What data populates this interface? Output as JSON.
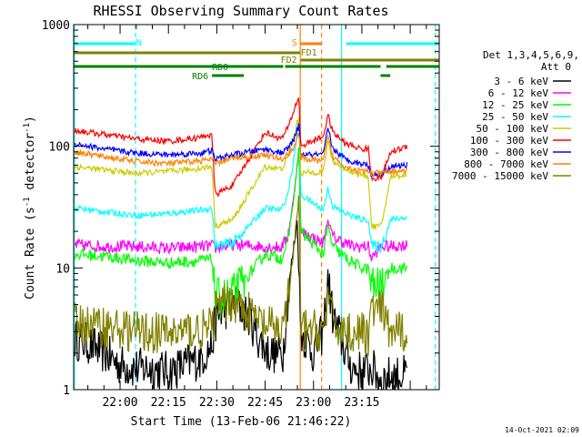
{
  "chart_data": {
    "type": "line",
    "title": "RHESSI Observing Summary Count Rates",
    "xlabel": "Start Time (13-Feb-06 21:46:22)",
    "ylabel_prefix": "Count Rate (s",
    "ylabel_exp": "-1",
    "ylabel_mid": " detector",
    "ylabel_suffix": ")",
    "yscale": "log",
    "ylim": [
      1,
      1000
    ],
    "xlim_minutes": [
      -14.4,
      99.0
    ],
    "x_ticks": [
      {
        "label": "22:00",
        "minute": 0
      },
      {
        "label": "22:15",
        "minute": 15
      },
      {
        "label": "22:30",
        "minute": 30
      },
      {
        "label": "22:45",
        "minute": 45
      },
      {
        "label": "23:00",
        "minute": 60
      },
      {
        "label": "23:15",
        "minute": 75
      }
    ],
    "y_ticks": [
      {
        "label": "1",
        "value": 1
      },
      {
        "label": "10",
        "value": 10
      },
      {
        "label": "100",
        "value": 100
      },
      {
        "label": "1000",
        "value": 1000
      }
    ],
    "detectors_label": "Det 1,3,4,5,6,9,",
    "attenuator_label": "Att 0",
    "timestamp": "14-Oct-2021 02:09",
    "series": [
      {
        "name": "3 - 6 keV",
        "color": "#000000",
        "x": [
          -14,
          -10,
          -5,
          0,
          5,
          10,
          15,
          20,
          25,
          28.5,
          29.5,
          32,
          36,
          40,
          43,
          46,
          50.5,
          51.5,
          53,
          55,
          56,
          60,
          63,
          64.5,
          66,
          70,
          72,
          75,
          78,
          81,
          84,
          89
        ],
        "values": [
          2.6,
          2.4,
          2.0,
          1.6,
          1.5,
          1.5,
          1.4,
          1.6,
          1.8,
          2.3,
          3.6,
          4.5,
          5.0,
          4.0,
          2.6,
          2.0,
          2.0,
          4.0,
          10.0,
          25.0,
          3.0,
          2.0,
          3.0,
          8.0,
          4.0,
          2.0,
          1.5,
          1.4,
          1.5,
          1.2,
          1.3,
          1.3
        ]
      },
      {
        "name": "6 - 12 keV",
        "color": "#ff00ff",
        "x": [
          -14,
          -5,
          5,
          15,
          25,
          28.5,
          29.5,
          35,
          45,
          50,
          52,
          54,
          55.5,
          56,
          63,
          64.5,
          66,
          70,
          72,
          75,
          77,
          78,
          81,
          84,
          89
        ],
        "values": [
          15.5,
          15.0,
          15.0,
          14.5,
          15.0,
          15.2,
          14.5,
          15.5,
          15.0,
          14.8,
          18.0,
          40.0,
          100.0,
          20.0,
          16.0,
          25.0,
          18.0,
          16.0,
          15.0,
          15.0,
          15.0,
          12.0,
          15.0,
          15.0,
          15.5
        ]
      },
      {
        "name": "12 - 25 keV",
        "color": "#00ff00",
        "x": [
          -14,
          -5,
          5,
          15,
          25,
          28.5,
          29.5,
          35,
          45,
          50,
          52,
          54,
          55.5,
          56,
          63,
          64.5,
          66,
          70,
          75,
          77,
          78,
          81,
          84,
          89
        ],
        "values": [
          13.0,
          12.5,
          11.5,
          11.0,
          11.5,
          11.8,
          5.5,
          6.0,
          13.0,
          12.0,
          16.0,
          40.0,
          100.0,
          20.0,
          13.0,
          22.0,
          15.0,
          12.0,
          10.0,
          9.8,
          7.0,
          7.0,
          10.0,
          10.0
        ]
      },
      {
        "name": "25 - 50 keV",
        "color": "#00ffff",
        "x": [
          -14,
          -5,
          5,
          15,
          25,
          28.5,
          29.5,
          35,
          45,
          50,
          52,
          54,
          55.5,
          56,
          63,
          64.5,
          66,
          70,
          75,
          77,
          78,
          81,
          84,
          89
        ],
        "values": [
          31.0,
          29.0,
          27.0,
          28.0,
          30.0,
          31.0,
          15.0,
          16.0,
          31.0,
          30.0,
          40.0,
          80.0,
          180.0,
          40.0,
          30.0,
          45.0,
          32.0,
          28.0,
          25.0,
          25.0,
          15.0,
          15.0,
          25.0,
          26.0
        ]
      },
      {
        "name": "50 - 100 keV",
        "color": "#cccc00",
        "x": [
          -14,
          -5,
          5,
          15,
          25,
          28.5,
          29.5,
          35,
          45,
          50,
          52,
          54,
          55.5,
          56,
          63,
          64.5,
          66,
          70,
          75,
          77,
          78,
          81,
          84,
          89
        ],
        "values": [
          68.0,
          64.0,
          60.0,
          62.0,
          66.0,
          68.0,
          22.0,
          25.0,
          68.0,
          65.0,
          80.0,
          120.0,
          180.0,
          60.0,
          62.0,
          110.0,
          75.0,
          65.0,
          58.0,
          57.0,
          22.0,
          22.0,
          57.0,
          58.0
        ]
      },
      {
        "name": "100 - 300 keV",
        "color": "#ff0000",
        "x": [
          -14,
          -5,
          5,
          15,
          25,
          27,
          28.5,
          29.5,
          35,
          45,
          50,
          52,
          54,
          55.5,
          56,
          63,
          64.5,
          66,
          70,
          75,
          77,
          78,
          81,
          84,
          89
        ],
        "values": [
          135.0,
          125.0,
          115.0,
          110.0,
          118.0,
          125.0,
          120.0,
          40.0,
          48.0,
          130.0,
          115.0,
          140.0,
          200.0,
          260.0,
          100.0,
          120.0,
          180.0,
          130.0,
          105.0,
          95.0,
          95.0,
          55.0,
          55.0,
          90.0,
          100.0
        ]
      },
      {
        "name": "300 - 800 keV",
        "color": "#0000ff",
        "x": [
          -14,
          -5,
          5,
          15,
          25,
          28.5,
          29.5,
          35,
          45,
          50,
          52,
          54,
          55.5,
          56,
          63,
          64.5,
          66,
          70,
          75,
          77,
          78,
          81,
          84,
          89
        ],
        "values": [
          105.0,
          95.0,
          88.0,
          85.0,
          88.0,
          92.0,
          78.0,
          85.0,
          95.0,
          88.0,
          95.0,
          115.0,
          150.0,
          85.0,
          85.0,
          140.0,
          95.0,
          78.0,
          72.0,
          70.0,
          58.0,
          60.0,
          68.0,
          70.0
        ]
      },
      {
        "name": "800 - 7000 keV",
        "color": "#ff8000",
        "x": [
          -14,
          -5,
          5,
          15,
          25,
          28.5,
          29.5,
          35,
          45,
          50,
          52,
          54,
          55.5,
          56,
          63,
          64.5,
          66,
          70,
          75,
          77,
          78,
          81,
          84,
          89
        ],
        "values": [
          90.0,
          82.0,
          75.0,
          72.0,
          76.0,
          78.0,
          72.0,
          80.0,
          85.0,
          78.0,
          85.0,
          100.0,
          130.0,
          80.0,
          75.0,
          120.0,
          82.0,
          68.0,
          62.0,
          62.0,
          60.0,
          60.0,
          62.0,
          63.0
        ]
      },
      {
        "name": "7000 - 15000 keV",
        "color": "#808000",
        "x": [
          -14,
          -5,
          5,
          15,
          25,
          28.5,
          29.5,
          35,
          45,
          50,
          52,
          54,
          55.5,
          56,
          63,
          64.5,
          66,
          70,
          75,
          77,
          78,
          81,
          84,
          89
        ],
        "values": [
          3.5,
          3.3,
          3.0,
          2.9,
          3.1,
          3.2,
          4.5,
          5.5,
          3.3,
          3.1,
          5.0,
          15.0,
          40.0,
          3.2,
          3.0,
          6.0,
          3.5,
          3.0,
          2.9,
          2.8,
          4.5,
          4.5,
          2.9,
          3.0
        ]
      }
    ],
    "flags": [
      {
        "label": "N",
        "color": "#00ffff",
        "row": "top",
        "segments": [
          [
            -14.4,
            4.8
          ],
          [
            70.1,
            99.0
          ]
        ],
        "label_minute": 5.0
      },
      {
        "label": "S",
        "color": "#ff8000",
        "row": "top",
        "segments": [
          [
            55.9,
            62.5
          ]
        ],
        "label_minute": 53.3
      },
      {
        "label": "FD1",
        "color": "#808000",
        "row": "fd1",
        "segments": [
          [
            -14.4,
            55.8
          ]
        ],
        "label_minute": 56.0
      },
      {
        "label": "FD2",
        "color": "#808000",
        "row": "fd2",
        "segments": [
          [
            56.0,
            99.0
          ]
        ],
        "label_minute": 49.8
      },
      {
        "label": "RD0",
        "color": "#008000",
        "row": "rd0",
        "segments": [
          [
            -14.4,
            50.6
          ],
          [
            51.2,
            80.8
          ],
          [
            82.6,
            99.0
          ]
        ],
        "label_minute": 28.5
      },
      {
        "label": "RD6",
        "color": "#008000",
        "row": "rd6",
        "segments": [
          [
            28.5,
            38.4
          ],
          [
            80.8,
            83.8
          ]
        ],
        "label_minute": 22.3
      }
    ],
    "vertical_lines": [
      {
        "minute": -14.2,
        "color": "#00ffff",
        "style": "solid"
      },
      {
        "minute": 4.8,
        "color": "#00ffff",
        "style": "dashed"
      },
      {
        "minute": 55.9,
        "color": "#ff8000",
        "style": "solid"
      },
      {
        "minute": 62.5,
        "color": "#ff8000",
        "style": "dashed"
      },
      {
        "minute": 68.7,
        "color": "#00ffff",
        "style": "solid"
      },
      {
        "minute": 97.8,
        "color": "#00ffff",
        "style": "dashed"
      }
    ]
  }
}
